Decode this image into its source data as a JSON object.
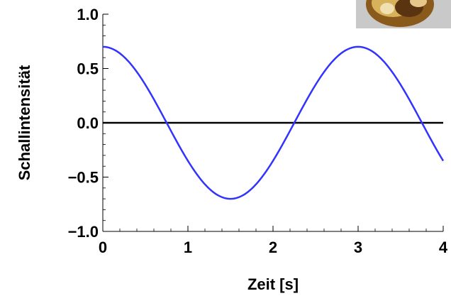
{
  "chart_data": {
    "type": "line",
    "title": "",
    "xlabel": "Zeit [s]",
    "ylabel": "Schallintensität",
    "xlim": [
      0,
      4
    ],
    "ylim": [
      -1.0,
      1.0
    ],
    "x_ticks": [
      {
        "value": 0,
        "label": "0"
      },
      {
        "value": 1,
        "label": "1"
      },
      {
        "value": 2,
        "label": "2"
      },
      {
        "value": 3,
        "label": "3"
      },
      {
        "value": 4,
        "label": "4"
      }
    ],
    "y_ticks": [
      {
        "value": 1.0,
        "label": "1.0"
      },
      {
        "value": 0.5,
        "label": "0.5"
      },
      {
        "value": 0.0,
        "label": "0.0"
      },
      {
        "value": -0.5,
        "label": "−0.5"
      },
      {
        "value": -1.0,
        "label": "−1.0"
      }
    ],
    "grid": false,
    "zero_line": true,
    "series": [
      {
        "color": "#3333ff",
        "function": "0.7*cos(2*pi*x/3)",
        "x": [
          0,
          0.25,
          0.5,
          0.75,
          1,
          1.25,
          1.5,
          1.75,
          2,
          2.25,
          2.5,
          2.75,
          3,
          3.25,
          3.5,
          3.75,
          4
        ],
        "y": [
          0.7,
          0.61,
          0.35,
          0.0,
          -0.35,
          -0.61,
          -0.7,
          -0.61,
          -0.35,
          0.0,
          0.35,
          0.61,
          0.7,
          0.61,
          0.35,
          0.0,
          -0.35
        ]
      }
    ]
  },
  "thumbnail": {
    "icon": "photo-thumbnail-icon"
  }
}
